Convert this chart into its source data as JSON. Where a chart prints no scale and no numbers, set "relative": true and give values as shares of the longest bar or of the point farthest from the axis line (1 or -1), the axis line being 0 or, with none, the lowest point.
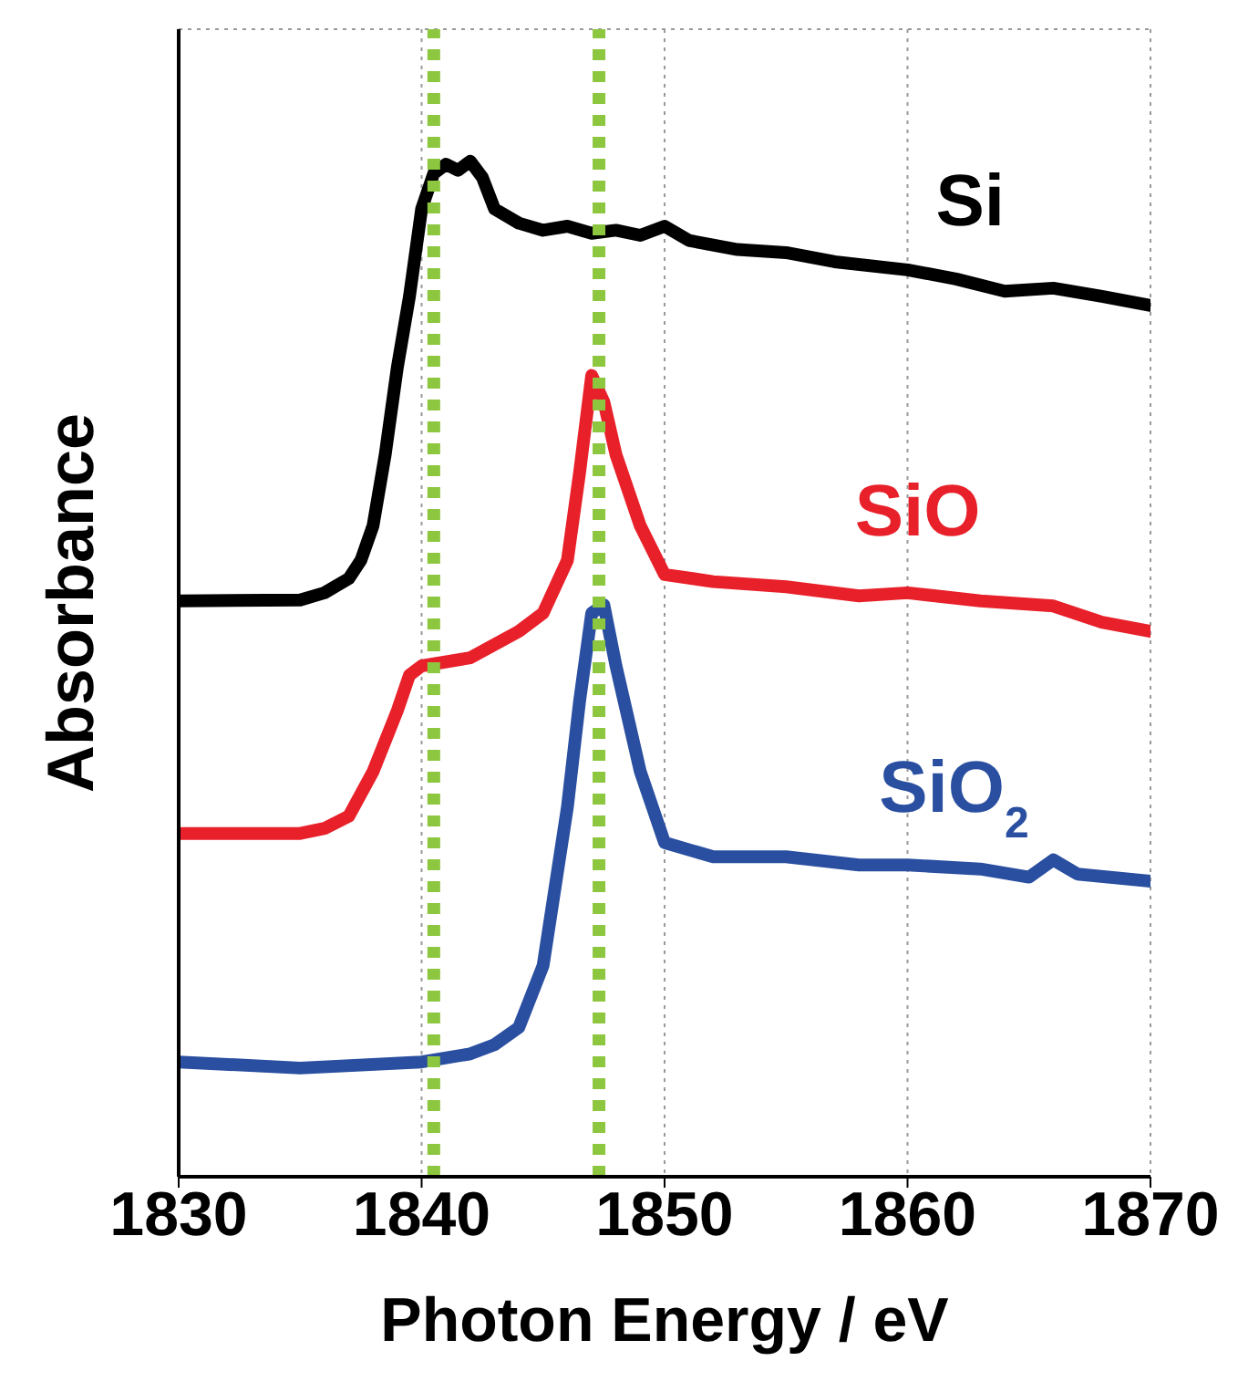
{
  "chart_data": {
    "type": "line",
    "relative": true,
    "xlabel": "Photon Energy / eV",
    "ylabel": "Absorbance",
    "xlim": [
      1830,
      1870
    ],
    "xticks": [
      1830,
      1840,
      1850,
      1860,
      1870
    ],
    "grid": true,
    "line_style": "solid",
    "marker": "none",
    "series": [
      {
        "name": "Si",
        "color": "#000000",
        "x": [
          1830,
          1835,
          1836,
          1837,
          1837.5,
          1838,
          1838.5,
          1839,
          1839.5,
          1840,
          1840.5,
          1841,
          1841.5,
          1842,
          1842.5,
          1843,
          1844,
          1845,
          1846,
          1847,
          1848,
          1849,
          1850,
          1851,
          1853,
          1855,
          1857,
          1860,
          1862,
          1864,
          1866,
          1868,
          1870
        ],
        "values": [
          0.567,
          0.568,
          0.575,
          0.589,
          0.607,
          0.641,
          0.711,
          0.797,
          0.867,
          0.953,
          0.988,
          0.997,
          0.991,
          1.0,
          0.984,
          0.953,
          0.939,
          0.932,
          0.936,
          0.929,
          0.932,
          0.927,
          0.936,
          0.922,
          0.913,
          0.91,
          0.901,
          0.893,
          0.884,
          0.872,
          0.875,
          0.867,
          0.858
        ]
      },
      {
        "name": "SiO",
        "color": "#e8202a",
        "x": [
          1830,
          1835,
          1836,
          1837,
          1838,
          1839,
          1839.5,
          1840,
          1842,
          1844,
          1845,
          1846,
          1846.5,
          1847,
          1847.5,
          1848,
          1849,
          1850,
          1852,
          1855,
          1858,
          1860,
          1863,
          1866,
          1868,
          1870
        ],
        "values": [
          0.338,
          0.338,
          0.343,
          0.355,
          0.399,
          0.459,
          0.494,
          0.503,
          0.511,
          0.537,
          0.555,
          0.607,
          0.693,
          0.789,
          0.763,
          0.711,
          0.641,
          0.593,
          0.586,
          0.581,
          0.572,
          0.575,
          0.567,
          0.562,
          0.546,
          0.537
        ]
      },
      {
        "name": "SiO$_{2}$",
        "color": "#2a4fa0",
        "x": [
          1830,
          1835,
          1840,
          1842,
          1843,
          1844,
          1845,
          1846,
          1846.5,
          1847,
          1847.5,
          1848,
          1849,
          1850,
          1852,
          1855,
          1858,
          1860,
          1863,
          1865,
          1866,
          1867,
          1870
        ],
        "values": [
          0.113,
          0.107,
          0.113,
          0.121,
          0.13,
          0.147,
          0.208,
          0.364,
          0.468,
          0.555,
          0.563,
          0.503,
          0.399,
          0.329,
          0.315,
          0.315,
          0.307,
          0.307,
          0.303,
          0.295,
          0.312,
          0.298,
          0.291
        ]
      }
    ],
    "ref_lines": [
      {
        "axis": "x",
        "value": 1840.5,
        "color": "#8dc63f",
        "line_style": "dotted"
      },
      {
        "axis": "x",
        "value": 1847.3,
        "color": "#8dc63f",
        "line_style": "dotted"
      }
    ]
  }
}
